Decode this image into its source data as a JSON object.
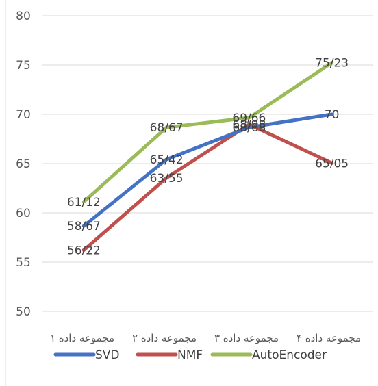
{
  "chart_data": {
    "type": "line",
    "categories": [
      "مجموعه داده ۱",
      "مجموعه داده ۲",
      "مجموعه داده ۳",
      "مجموعه داده ۴"
    ],
    "ylim": [
      50,
      80
    ],
    "yticks": [
      50,
      55,
      60,
      65,
      70,
      75,
      80
    ],
    "grid": true,
    "legend_position": "bottom",
    "series": [
      {
        "name": "SVD",
        "color": "#4472c4",
        "values": [
          58.67,
          65.42,
          68.68,
          70
        ],
        "labels": [
          "58/67",
          "65/42",
          "68/68",
          "70"
        ]
      },
      {
        "name": "NMF",
        "color": "#c0504d",
        "values": [
          56.22,
          63.55,
          68.98,
          65.05
        ],
        "labels": [
          "56/22",
          "63/55",
          "68/98",
          "65/05"
        ]
      },
      {
        "name": "AutoEncoder",
        "color": "#9bbb59",
        "values": [
          61.12,
          68.67,
          69.66,
          75.23
        ],
        "labels": [
          "61/12",
          "68/67",
          "69/66",
          "75/23"
        ]
      }
    ]
  }
}
